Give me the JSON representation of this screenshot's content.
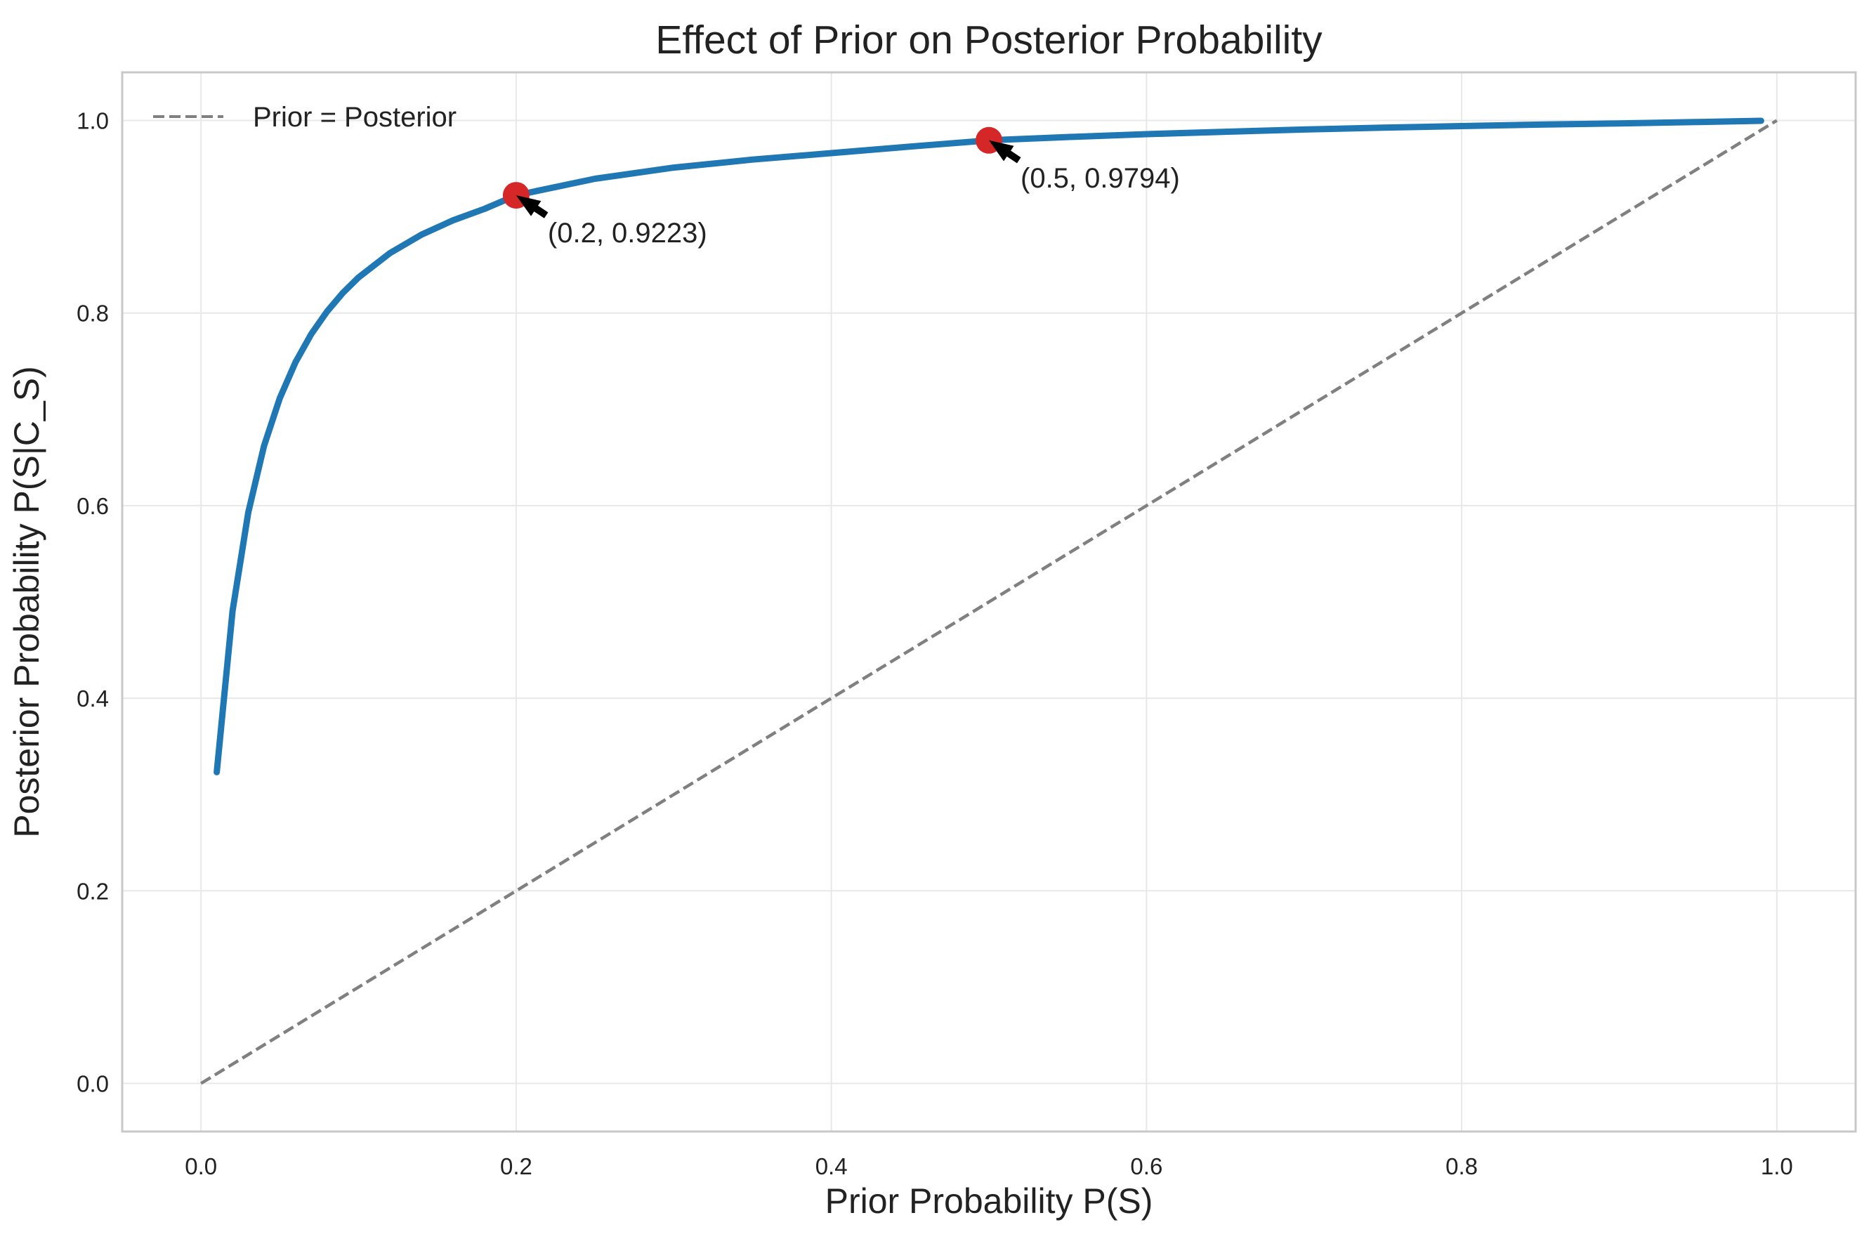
{
  "chart_data": {
    "type": "line",
    "title": "Effect of Prior on Posterior Probability",
    "xlabel": "Prior Probability P(S)",
    "ylabel": "Posterior Probability P(S|C_S)",
    "xlim": [
      -0.05,
      1.05
    ],
    "ylim": [
      -0.05,
      1.05
    ],
    "x_ticks": [
      0.0,
      0.2,
      0.4,
      0.6,
      0.8,
      1.0
    ],
    "y_ticks": [
      0.0,
      0.2,
      0.4,
      0.6,
      0.8,
      1.0
    ],
    "x_tick_labels": [
      "0.0",
      "0.2",
      "0.4",
      "0.6",
      "0.8",
      "1.0"
    ],
    "y_tick_labels": [
      "0.0",
      "0.2",
      "0.4",
      "0.6",
      "0.8",
      "1.0"
    ],
    "grid": true,
    "legend_position": "top-left",
    "series": [
      {
        "color": "#1f77b4",
        "style": "solid",
        "x": [
          0.01,
          0.02,
          0.03,
          0.04,
          0.05,
          0.06,
          0.07,
          0.08,
          0.09,
          0.1,
          0.12,
          0.14,
          0.16,
          0.18,
          0.2,
          0.25,
          0.3,
          0.35,
          0.4,
          0.45,
          0.5,
          0.55,
          0.6,
          0.65,
          0.7,
          0.75,
          0.8,
          0.85,
          0.9,
          0.95,
          0.99
        ],
        "y": [
          0.3232,
          0.4906,
          0.593,
          0.662,
          0.7117,
          0.749,
          0.7782,
          0.8017,
          0.8209,
          0.837,
          0.8624,
          0.8815,
          0.8964,
          0.9083,
          0.9223,
          0.9395,
          0.9511,
          0.9594,
          0.9661,
          0.9729,
          0.9794,
          0.9828,
          0.9858,
          0.9883,
          0.9906,
          0.9925,
          0.9942,
          0.9957,
          0.997,
          0.9984,
          0.9997
        ]
      },
      {
        "name": "Prior = Posterior",
        "color": "#808080",
        "style": "dashed",
        "x": [
          0.0,
          1.0
        ],
        "y": [
          0.0,
          1.0
        ]
      }
    ],
    "highlight_points": [
      {
        "x": 0.2,
        "y": 0.9223,
        "color": "#d62728",
        "label": "(0.2, 0.9223)"
      },
      {
        "x": 0.5,
        "y": 0.9794,
        "color": "#d62728",
        "label": "(0.5, 0.9794)"
      }
    ]
  }
}
